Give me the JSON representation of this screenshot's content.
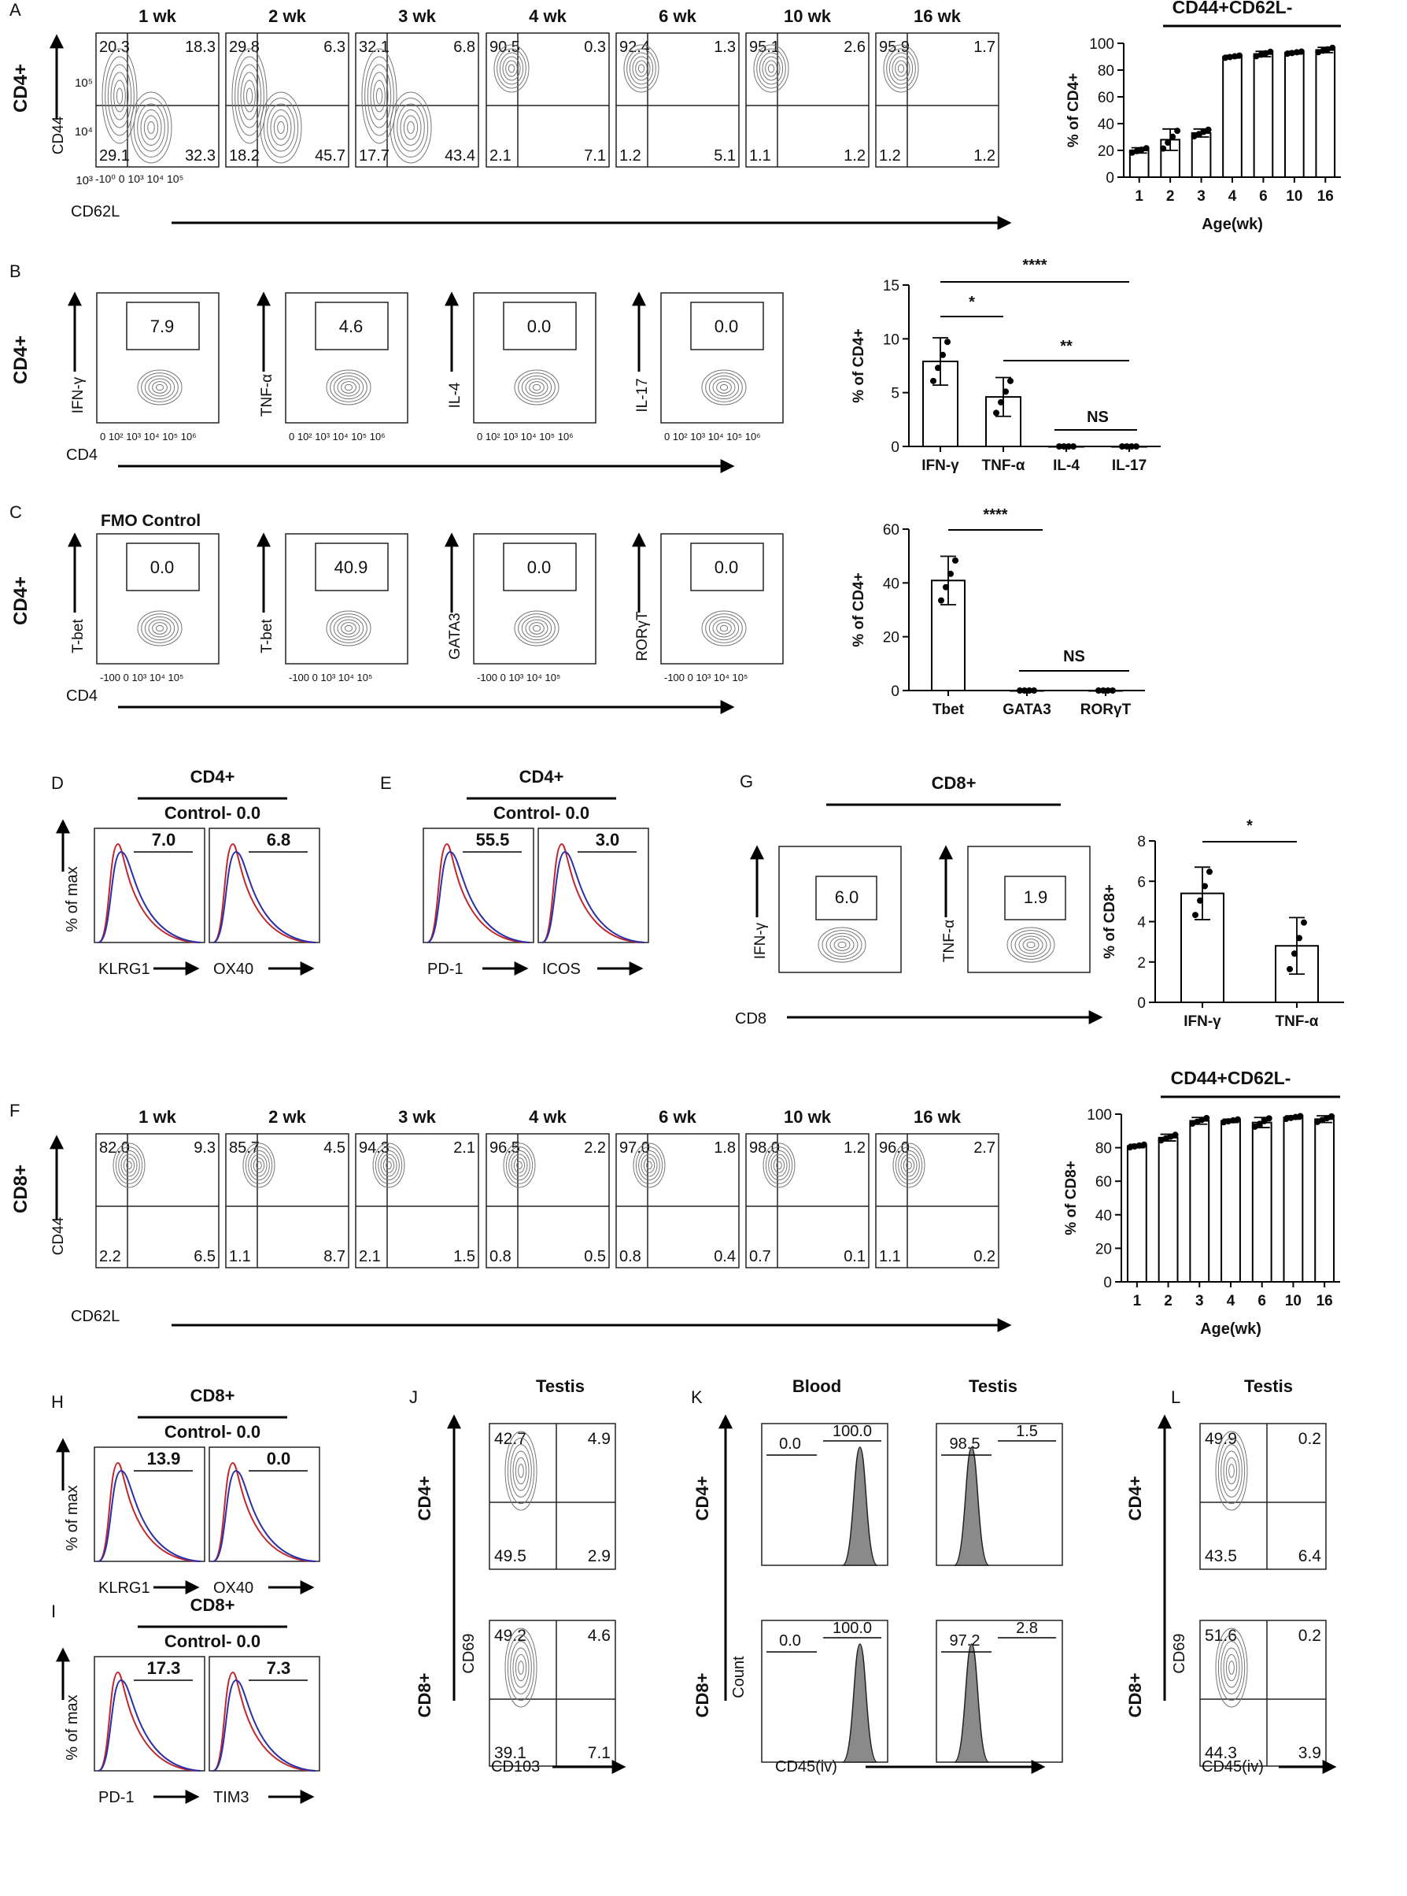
{
  "panels": {
    "A": {
      "letter": "A",
      "row_label": "CD4+",
      "plots": [
        {
          "title": "1 wk",
          "ul": "20.3",
          "ur": "18.3",
          "ll": "29.1",
          "lr": "32.3"
        },
        {
          "title": "2 wk",
          "ul": "29.8",
          "ur": "6.3",
          "ll": "18.2",
          "lr": "45.7"
        },
        {
          "title": "3 wk",
          "ul": "32.1",
          "ur": "6.8",
          "ll": "17.7",
          "lr": "43.4"
        },
        {
          "title": "4 wk",
          "ul": "90.5",
          "ur": "0.3",
          "ll": "2.1",
          "lr": "7.1"
        },
        {
          "title": "6 wk",
          "ul": "92.4",
          "ur": "1.3",
          "ll": "1.2",
          "lr": "5.1"
        },
        {
          "title": "10 wk",
          "ul": "95.1",
          "ur": "2.6",
          "ll": "1.1",
          "lr": "1.2"
        },
        {
          "title": "16 wk",
          "ul": "95.9",
          "ur": "1.7",
          "ll": "1.2",
          "lr": "1.2"
        }
      ],
      "y_axis": "CD44",
      "x_axis": "CD62L",
      "y_ticks": [
        "10⁵",
        "10⁴",
        "10³"
      ],
      "x_ticks": [
        "-10⁰",
        "0",
        "10³",
        "10⁴",
        "10⁵"
      ]
    },
    "B": {
      "letter": "B",
      "row_label": "CD4+",
      "x_axis": "CD4",
      "plots": [
        {
          "ylabel": "IFN-γ",
          "gate": "7.9"
        },
        {
          "ylabel": "TNF-α",
          "gate": "4.6"
        },
        {
          "ylabel": "IL-4",
          "gate": "0.0"
        },
        {
          "ylabel": "IL-17",
          "gate": "0.0"
        }
      ],
      "y_ticks": [
        "10⁵",
        "10⁴",
        "10³",
        "0"
      ],
      "x_ticks": [
        "0",
        "10²",
        "10³",
        "10⁴",
        "10⁵",
        "10⁶"
      ]
    },
    "C": {
      "letter": "C",
      "row_label": "CD4+",
      "fmo": "FMO Control",
      "x_axis": "CD4",
      "plots": [
        {
          "ylabel": "T-bet",
          "gate": "0.0"
        },
        {
          "ylabel": "T-bet",
          "gate": "40.9"
        },
        {
          "ylabel": "GATA3",
          "gate": "0.0"
        },
        {
          "ylabel": "RORγT",
          "gate": "0.0"
        }
      ],
      "y_ticks": [
        "10⁵",
        "10⁴",
        "10³",
        "0"
      ],
      "x_ticks": [
        "-100",
        "0",
        "10³",
        "10⁴",
        "10⁵"
      ]
    },
    "D": {
      "letter": "D",
      "group": "CD4+",
      "control": "Control- 0.0",
      "y_axis": "% of max",
      "plots": [
        {
          "label": "KLRG1",
          "value": "7.0"
        },
        {
          "label": "OX40",
          "value": "6.8"
        }
      ]
    },
    "E": {
      "letter": "E",
      "group": "CD4+",
      "control": "Control- 0.0",
      "plots": [
        {
          "label": "PD-1",
          "value": "55.5"
        },
        {
          "label": "ICOS",
          "value": "3.0"
        }
      ]
    },
    "G": {
      "letter": "G",
      "group": "CD8+",
      "x_axis": "CD8",
      "plots": [
        {
          "ylabel": "IFN-γ",
          "gate": "6.0"
        },
        {
          "ylabel": "TNF-α",
          "gate": "1.9"
        }
      ]
    },
    "F": {
      "letter": "F",
      "row_label": "CD8+",
      "plots": [
        {
          "title": "1 wk",
          "ul": "82.0",
          "ur": "9.3",
          "ll": "2.2",
          "lr": "6.5"
        },
        {
          "title": "2 wk",
          "ul": "85.7",
          "ur": "4.5",
          "ll": "1.1",
          "lr": "8.7"
        },
        {
          "title": "3 wk",
          "ul": "94.3",
          "ur": "2.1",
          "ll": "2.1",
          "lr": "1.5"
        },
        {
          "title": "4 wk",
          "ul": "96.5",
          "ur": "2.2",
          "ll": "0.8",
          "lr": "0.5"
        },
        {
          "title": "6 wk",
          "ul": "97.0",
          "ur": "1.8",
          "ll": "0.8",
          "lr": "0.4"
        },
        {
          "title": "10 wk",
          "ul": "98.0",
          "ur": "1.2",
          "ll": "0.7",
          "lr": "0.1"
        },
        {
          "title": "16 wk",
          "ul": "96.0",
          "ur": "2.7",
          "ll": "1.1",
          "lr": "0.2"
        }
      ],
      "y_axis": "CD44",
      "x_axis": "CD62L"
    },
    "H": {
      "letter": "H",
      "group": "CD8+",
      "control": "Control- 0.0",
      "y_axis": "% of max",
      "plots": [
        {
          "label": "KLRG1",
          "value": "13.9"
        },
        {
          "label": "OX40",
          "value": "0.0"
        }
      ]
    },
    "I": {
      "letter": "I",
      "group": "CD8+",
      "control": "Control- 0.0",
      "y_axis": "% of max",
      "plots": [
        {
          "label": "PD-1",
          "value": "17.3"
        },
        {
          "label": "TIM3",
          "value": "7.3"
        }
      ]
    },
    "J": {
      "letter": "J",
      "title": "Testis",
      "y_axis": "CD69",
      "x_axis": "CD103",
      "rows": [
        {
          "label": "CD4+",
          "ul": "42.7",
          "ur": "4.9",
          "ll": "49.5",
          "lr": "2.9"
        },
        {
          "label": "CD8+",
          "ul": "49.2",
          "ur": "4.6",
          "ll": "39.1",
          "lr": "7.1"
        }
      ]
    },
    "K": {
      "letter": "K",
      "col1": "Blood",
      "col2": "Testis",
      "y_axis": "Count",
      "x_axis": "CD45(iv)",
      "rows": [
        {
          "label": "CD4+",
          "blood_neg": "0.0",
          "blood_pos": "100.0",
          "testis_neg": "98.5",
          "testis_pos": "1.5"
        },
        {
          "label": "CD8+",
          "blood_neg": "0.0",
          "blood_pos": "100.0",
          "testis_neg": "97.2",
          "testis_pos": "2.8"
        }
      ]
    },
    "L": {
      "letter": "L",
      "title": "Testis",
      "y_axis": "CD69",
      "x_axis": "CD45(iv)",
      "rows": [
        {
          "label": "CD4+",
          "ul": "49.9",
          "ur": "0.2",
          "ll": "43.5",
          "lr": "6.4"
        },
        {
          "label": "CD8+",
          "ul": "51.6",
          "ur": "0.2",
          "ll": "44.3",
          "lr": "3.9"
        }
      ]
    }
  },
  "chart_data": [
    {
      "id": "A-bar",
      "type": "bar",
      "title": "CD44+CD62L-",
      "categories": [
        "1",
        "2",
        "3",
        "4",
        "6",
        "10",
        "16"
      ],
      "values": [
        20,
        28,
        33,
        90,
        92,
        93,
        95
      ],
      "errors": [
        2,
        8,
        3,
        1,
        2,
        1,
        2
      ],
      "xlabel": "Age(wk)",
      "ylabel": "% of CD4+",
      "ylim": [
        0,
        100
      ],
      "yticks": [
        "0",
        "20",
        "40",
        "60",
        "80",
        "100"
      ]
    },
    {
      "id": "B-bar",
      "type": "bar",
      "categories": [
        "IFN-γ",
        "TNF-α",
        "IL-4",
        "IL-17"
      ],
      "values": [
        7.9,
        4.6,
        0,
        0
      ],
      "errors": [
        2.2,
        1.8,
        0,
        0
      ],
      "ylabel": "% of CD4+",
      "ylim": [
        0,
        15
      ],
      "yticks": [
        "0",
        "5",
        "10",
        "15"
      ],
      "significance": [
        "*",
        "**",
        "****",
        "NS"
      ]
    },
    {
      "id": "C-bar",
      "type": "bar",
      "categories": [
        "Tbet",
        "GATA3",
        "RORγT"
      ],
      "values": [
        40.9,
        0,
        0
      ],
      "errors": [
        9,
        0,
        0
      ],
      "ylabel": "% of CD4+",
      "ylim": [
        0,
        60
      ],
      "yticks": [
        "0",
        "20",
        "40",
        "60"
      ],
      "significance": [
        "****",
        "NS"
      ]
    },
    {
      "id": "G-bar",
      "type": "bar",
      "categories": [
        "IFN-γ",
        "TNF-α"
      ],
      "values": [
        5.4,
        2.8
      ],
      "errors": [
        1.3,
        1.4
      ],
      "ylabel": "% of CD8+",
      "ylim": [
        0,
        8
      ],
      "yticks": [
        "0",
        "2",
        "4",
        "6",
        "8"
      ],
      "significance": [
        "*"
      ]
    },
    {
      "id": "F-bar",
      "type": "bar",
      "title": "CD44+CD62L-",
      "categories": [
        "1",
        "2",
        "3",
        "4",
        "6",
        "10",
        "16"
      ],
      "values": [
        81,
        86,
        96,
        96,
        95,
        98,
        97
      ],
      "errors": [
        1,
        2,
        2,
        1,
        3,
        1,
        2
      ],
      "xlabel": "Age(wk)",
      "ylabel": "% of CD8+",
      "ylim": [
        0,
        100
      ],
      "yticks": [
        "0",
        "20",
        "40",
        "60",
        "80",
        "100"
      ]
    }
  ]
}
